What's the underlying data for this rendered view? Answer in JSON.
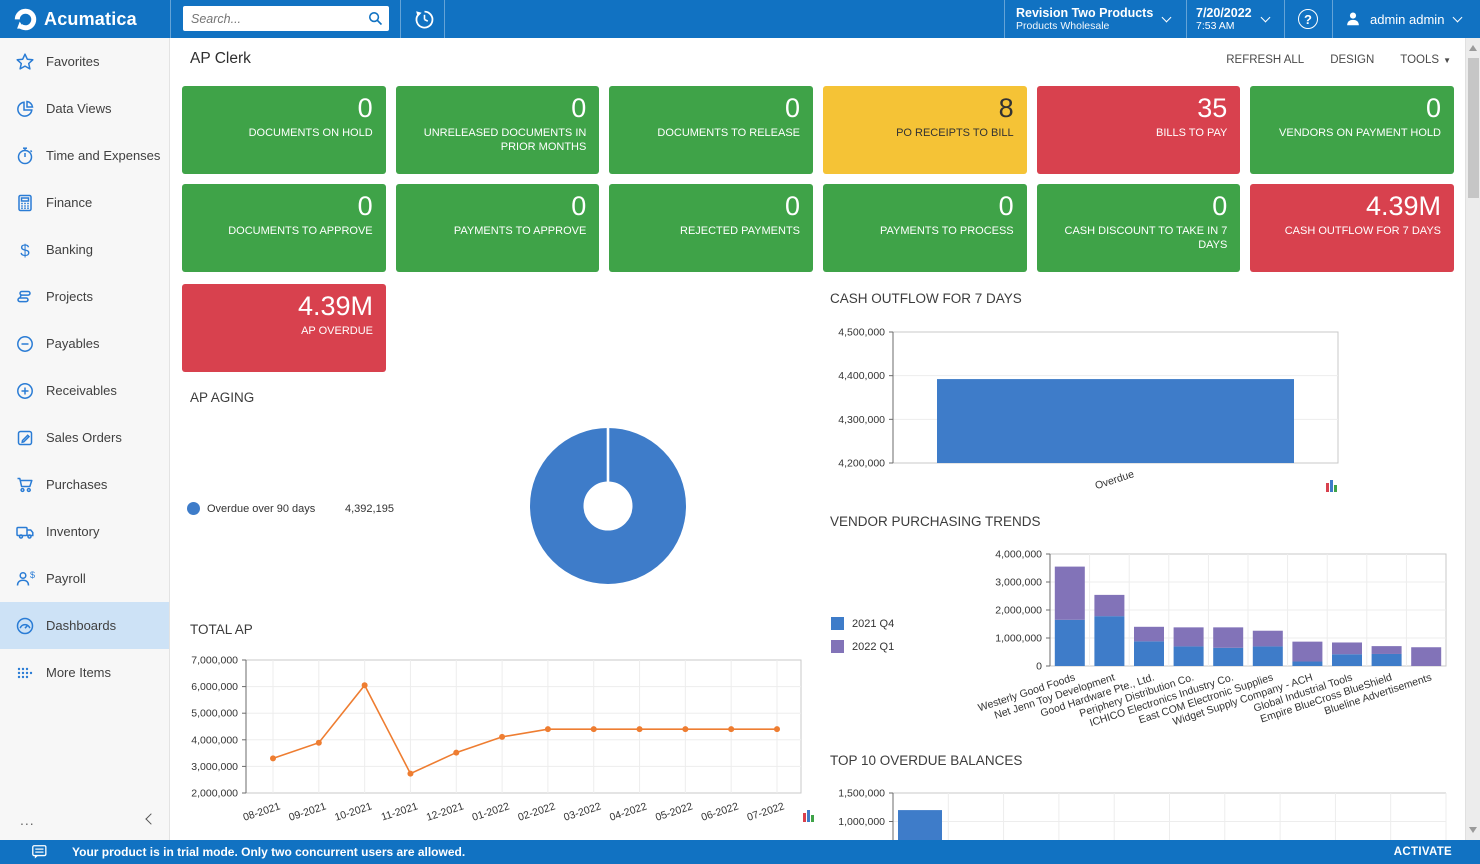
{
  "topbar": {
    "brand": "Acumatica",
    "search_placeholder": "Search...",
    "company": {
      "line1": "Revision Two Products",
      "line2": "Products Wholesale"
    },
    "datetime": {
      "date": "7/20/2022",
      "time": "7:53 AM"
    },
    "help_label": "?",
    "user": "admin admin"
  },
  "sidebar": {
    "items": [
      {
        "label": "Favorites",
        "icon": "star-icon"
      },
      {
        "label": "Data Views",
        "icon": "pie-chart-icon"
      },
      {
        "label": "Time and Expenses",
        "icon": "stopwatch-icon"
      },
      {
        "label": "Finance",
        "icon": "calculator-icon"
      },
      {
        "label": "Banking",
        "icon": "dollar-icon"
      },
      {
        "label": "Projects",
        "icon": "layers-icon"
      },
      {
        "label": "Payables",
        "icon": "minus-circle-icon"
      },
      {
        "label": "Receivables",
        "icon": "plus-circle-icon"
      },
      {
        "label": "Sales Orders",
        "icon": "pencil-square-icon"
      },
      {
        "label": "Purchases",
        "icon": "cart-icon"
      },
      {
        "label": "Inventory",
        "icon": "truck-icon"
      },
      {
        "label": "Payroll",
        "icon": "person-dollar-icon"
      },
      {
        "label": "Dashboards",
        "icon": "gauge-icon"
      },
      {
        "label": "More Items",
        "icon": "grid-dots-icon"
      }
    ],
    "selected": "Dashboards",
    "more_dots": "...",
    "collapse": "left-chevron"
  },
  "page": {
    "title": "AP Clerk",
    "actions": {
      "refresh": "REFRESH ALL",
      "design": "DESIGN",
      "tools": "TOOLS"
    }
  },
  "tiles": [
    {
      "value": "0",
      "label": "DOCUMENTS ON HOLD",
      "color": "green"
    },
    {
      "value": "0",
      "label": "UNRELEASED DOCUMENTS IN PRIOR MONTHS",
      "color": "green"
    },
    {
      "value": "0",
      "label": "DOCUMENTS TO RELEASE",
      "color": "green"
    },
    {
      "value": "8",
      "label": "PO RECEIPTS TO BILL",
      "color": "yellow"
    },
    {
      "value": "35",
      "label": "BILLS TO PAY",
      "color": "red"
    },
    {
      "value": "0",
      "label": "VENDORS ON PAYMENT HOLD",
      "color": "green"
    },
    {
      "value": "0",
      "label": "DOCUMENTS TO APPROVE",
      "color": "green"
    },
    {
      "value": "0",
      "label": "PAYMENTS TO APPROVE",
      "color": "green"
    },
    {
      "value": "0",
      "label": "REJECTED PAYMENTS",
      "color": "green"
    },
    {
      "value": "0",
      "label": "PAYMENTS TO PROCESS",
      "color": "green"
    },
    {
      "value": "0",
      "label": "CASH DISCOUNT TO TAKE IN 7 DAYS",
      "color": "green"
    },
    {
      "value": "4.39M",
      "label": "CASH OUTFLOW FOR 7 DAYS",
      "color": "red"
    }
  ],
  "overdue_tile": {
    "value": "4.39M",
    "label": "AP OVERDUE",
    "color": "red"
  },
  "chart_data": [
    {
      "id": "ap-aging",
      "type": "pie",
      "title": "AP AGING",
      "donut": true,
      "slices": [
        {
          "label": "Overdue over 90 days",
          "value": 4392195,
          "color": "#3e7cc9"
        }
      ],
      "legend_value_text": "4,392,195",
      "legend_position": "left"
    },
    {
      "id": "cash-outflow",
      "type": "bar",
      "title": "CASH OUTFLOW FOR 7 DAYS",
      "categories": [
        "Overdue"
      ],
      "values": [
        4392195
      ],
      "bar_color": "#3e7cc9",
      "ylim": [
        4200000,
        4500000
      ],
      "ytick_step": 100000,
      "grid": true
    },
    {
      "id": "vendor-trends",
      "type": "bar-stacked",
      "title": "VENDOR PURCHASING TRENDS",
      "categories": [
        "Westerly Good Foods",
        "Net Jenn Toy Development",
        "Good Hardware Pte., Ltd.",
        "Periphery Distribution Co.",
        "ICHICO Electronics Industry Co.",
        "East COM Electronic Supplies",
        "Widget Supply Company - ACH",
        "Global Industrial Tools",
        "Empire BlueCross BlueShield",
        "Blueline Advertisements"
      ],
      "series": [
        {
          "name": "2021 Q4",
          "color": "#3e7cc9",
          "values": [
            1650000,
            1780000,
            880000,
            700000,
            650000,
            700000,
            160000,
            420000,
            430000,
            0
          ]
        },
        {
          "name": "2022 Q1",
          "color": "#8273b8",
          "values": [
            1900000,
            760000,
            520000,
            680000,
            730000,
            560000,
            710000,
            420000,
            280000,
            670000
          ]
        }
      ],
      "ylim": [
        0,
        4000000
      ],
      "ytick_step": 1000000,
      "legend_position": "left",
      "grid": true
    },
    {
      "id": "total-ap",
      "type": "line",
      "title": "TOTAL AP",
      "x": [
        "08-2021",
        "09-2021",
        "10-2021",
        "11-2021",
        "12-2021",
        "01-2022",
        "02-2022",
        "03-2022",
        "04-2022",
        "05-2022",
        "06-2022",
        "07-2022"
      ],
      "values": [
        3300000,
        3890000,
        6050000,
        2730000,
        3520000,
        4110000,
        4400000,
        4400000,
        4400000,
        4400000,
        4400000,
        4400000
      ],
      "line_color": "#ee7d31",
      "ylim": [
        2000000,
        7000000
      ],
      "ytick_step": 1000000,
      "grid": true
    },
    {
      "id": "top10-overdue",
      "type": "bar",
      "title": "TOP 10 OVERDUE BALANCES",
      "categories": [
        ""
      ],
      "values": [
        1200000
      ],
      "bar_color": "#3e7cc9",
      "ylim_top": 1500000,
      "yticks_visible": [
        1500000,
        1000000
      ],
      "grid": true,
      "clipped": true
    }
  ],
  "trialbar": {
    "message": "Your product is in trial mode. Only two concurrent users are allowed.",
    "activate": "ACTIVATE"
  }
}
